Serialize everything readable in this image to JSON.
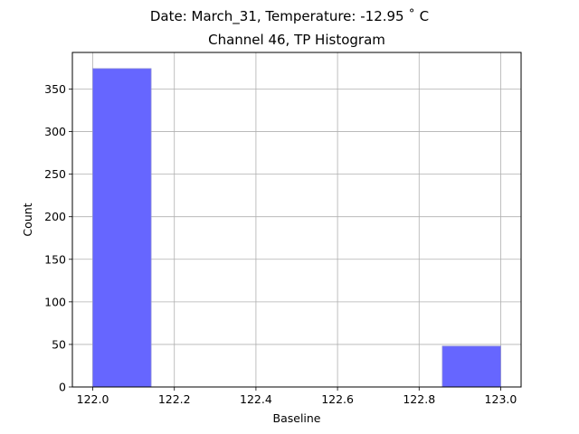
{
  "suptitle": "Date: March_31, Temperature: -12.95 ˚ C",
  "chart_data": {
    "type": "bar",
    "title": "Channel 46, TP Histogram",
    "xlabel": "Baseline",
    "ylabel": "Count",
    "xlim": [
      121.95,
      123.05
    ],
    "ylim": [
      0,
      393
    ],
    "xticks": [
      122.0,
      122.2,
      122.4,
      122.6,
      122.8,
      123.0
    ],
    "xtick_labels": [
      "122.0",
      "122.2",
      "122.4",
      "122.6",
      "122.8",
      "123.0"
    ],
    "yticks": [
      0,
      50,
      100,
      150,
      200,
      250,
      300,
      350
    ],
    "ytick_labels": [
      "0",
      "50",
      "100",
      "150",
      "200",
      "250",
      "300",
      "350"
    ],
    "bins": [
      {
        "x0": 122.0,
        "x1": 122.143,
        "count": 374
      },
      {
        "x0": 122.857,
        "x1": 123.0,
        "count": 48
      }
    ],
    "grid": true,
    "bar_color": "#6666ff",
    "bar_edge_color": "#8a8ad6"
  }
}
